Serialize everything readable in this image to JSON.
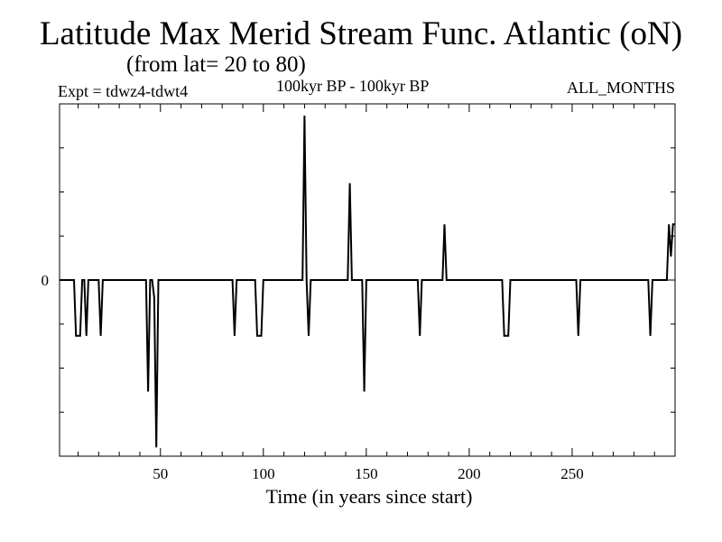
{
  "chart_data": {
    "type": "line",
    "title": "Latitude Max Merid Stream Func. Atlantic (oN)",
    "subtitle": "(from lat= 20 to 80)",
    "header_left": "Expt = tdwz4-tdwt4",
    "header_center": "100kyr BP - 100kyr BP",
    "header_right": "ALL_MONTHS",
    "xlabel": "Time (in years since start)",
    "ylabel": "",
    "xlim": [
      1,
      300
    ],
    "ylim": [
      -3.0,
      3.0
    ],
    "x_ticks": [
      50,
      100,
      150,
      200,
      250
    ],
    "x_minor_step": 10,
    "y_ticks": [
      0
    ],
    "y_minor_step": 0.75,
    "grid": false,
    "series": [
      {
        "name": "",
        "x": [
          1,
          8,
          9,
          11,
          12,
          13,
          14,
          15,
          20,
          21,
          22,
          43,
          44,
          45,
          46,
          47,
          48,
          49,
          50,
          85,
          86,
          87,
          96,
          97,
          99,
          100,
          119,
          120,
          121,
          122,
          123,
          124,
          141,
          142,
          143,
          148,
          149,
          150,
          175,
          176,
          177,
          187,
          188,
          189,
          216,
          217,
          219,
          220,
          252,
          253,
          254,
          287,
          288,
          289,
          291,
          296,
          297,
          298,
          299,
          300
        ],
        "y": [
          0,
          0,
          -0.95,
          -0.95,
          0,
          0,
          -0.95,
          0,
          0,
          -0.95,
          0,
          0,
          -1.9,
          0,
          0,
          -0.3,
          -2.85,
          0,
          0,
          0,
          -0.95,
          0,
          0,
          -0.95,
          -0.95,
          0,
          0,
          2.8,
          0,
          -0.95,
          0,
          0,
          0,
          1.65,
          0,
          0,
          -1.9,
          0,
          0,
          -0.95,
          0,
          0,
          0.95,
          0,
          0,
          -0.95,
          -0.95,
          0,
          0,
          -0.95,
          0,
          0,
          -0.95,
          0,
          0,
          0,
          0.95,
          0.4,
          0.95,
          0.95
        ]
      }
    ]
  }
}
